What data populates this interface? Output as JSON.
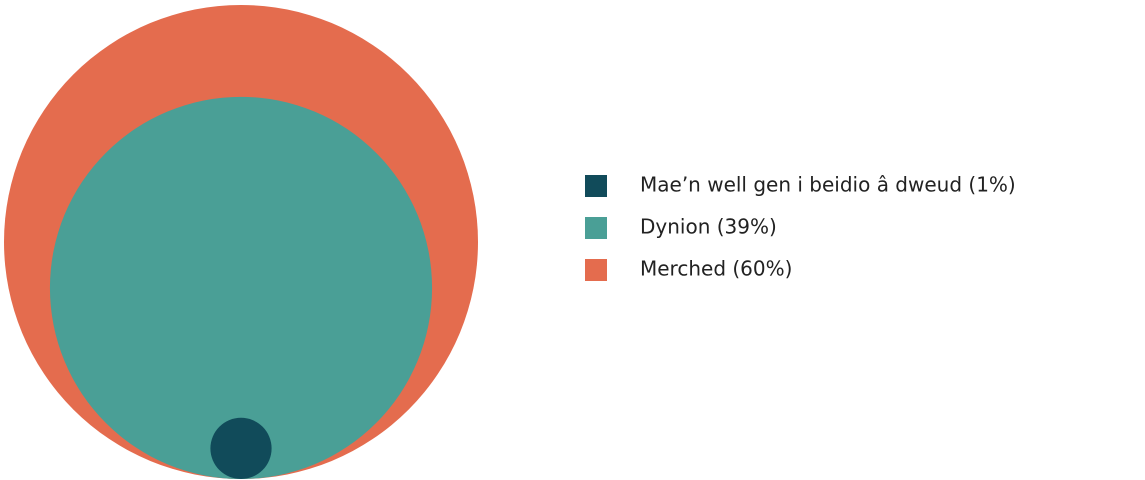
{
  "chart_data": {
    "type": "nested-circles",
    "categories": [
      "Mae’n well gen i beidio â dweud (1%)",
      "Dynion (39%)",
      "Merched (60%)"
    ],
    "values": [
      1,
      39,
      60
    ],
    "colors": [
      "#114b5a",
      "#4a9f96",
      "#e46c4e"
    ]
  }
}
